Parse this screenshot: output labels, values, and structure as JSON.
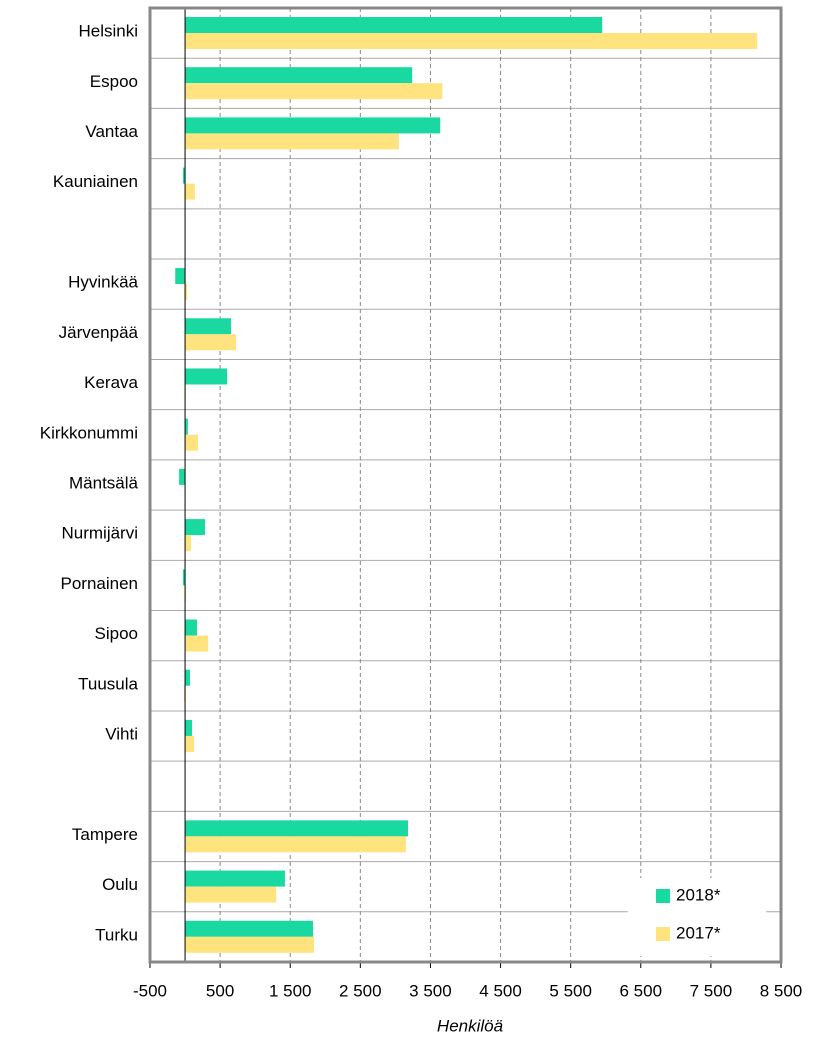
{
  "chart_data": {
    "type": "barh",
    "x_label": "Henkilöä",
    "categories": [
      "Helsinki",
      "Espoo",
      "Vantaa",
      "Kauniainen",
      null,
      "Hyvinkää",
      "Järvenpää",
      "Kerava",
      "Kirkkonummi",
      "Mäntsälä",
      "Nurmijärvi",
      "Pornainen",
      "Sipoo",
      "Tuusula",
      "Vihti",
      null,
      "Tampere",
      "Oulu",
      "Turku"
    ],
    "series": [
      {
        "name": "2018*",
        "color": "#19d9a0",
        "values": [
          5950,
          3240,
          3640,
          -30,
          null,
          -140,
          656,
          600,
          40,
          -85,
          285,
          -30,
          170,
          70,
          100,
          null,
          3180,
          1425,
          1825
        ]
      },
      {
        "name": "2017*",
        "color": "#ffe37f",
        "values": [
          8160,
          3670,
          3050,
          140,
          null,
          30,
          728,
          10,
          185,
          0,
          85,
          15,
          330,
          -15,
          130,
          null,
          3150,
          1300,
          1840
        ]
      }
    ],
    "xlim": [
      -500,
      8500
    ],
    "xticks": [
      -500,
      500,
      {
        "value": 1500,
        "label": "1 500"
      },
      {
        "value": 2500,
        "label": "2 500"
      },
      {
        "value": 3500,
        "label": "3 500"
      },
      {
        "value": 4500,
        "label": "4 500"
      },
      {
        "value": 5500,
        "label": "5 500"
      },
      {
        "value": 6500,
        "label": "6 500"
      },
      {
        "value": 7500,
        "label": "7 500"
      },
      {
        "value": 8500,
        "label": "8 500"
      }
    ],
    "grid": true,
    "legend": "lower right"
  }
}
